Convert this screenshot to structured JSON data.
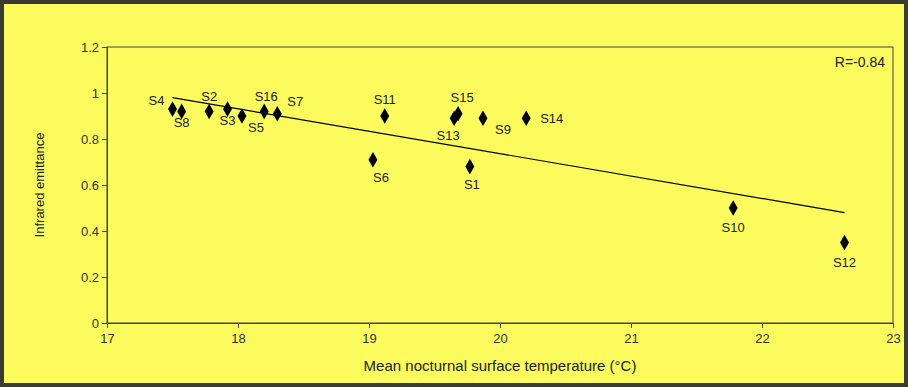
{
  "chart_data": {
    "type": "scatter",
    "x_label": "Mean nocturnal surface temperature (°C)",
    "y_label": "Infrared emittance",
    "annotation": "R=-0.84",
    "point_labels": [
      "S4",
      "S8",
      "S2",
      "S3",
      "S16",
      "S5",
      "S7",
      "S11",
      "S6",
      "S15",
      "S13",
      "S9",
      "S1",
      "S14",
      "S10",
      "S12"
    ],
    "x": [
      17.5,
      17.57,
      17.78,
      17.92,
      18.2,
      18.03,
      18.3,
      19.12,
      19.03,
      19.68,
      19.65,
      19.87,
      19.77,
      20.2,
      21.78,
      22.63
    ],
    "values": [
      0.93,
      0.92,
      0.92,
      0.93,
      0.92,
      0.9,
      0.91,
      0.9,
      0.71,
      0.91,
      0.89,
      0.89,
      0.68,
      0.89,
      0.5,
      0.35
    ],
    "trend_line": {
      "x": [
        17.5,
        22.63
      ],
      "values": [
        0.98,
        0.48
      ]
    },
    "color": "#000000",
    "marker": "diamond",
    "xlim": [
      17,
      23
    ],
    "xticks": [
      17,
      18,
      19,
      20,
      21,
      22,
      23
    ],
    "ylim": [
      0,
      1.2
    ],
    "yticks": [
      0,
      0.2,
      0.4,
      0.6,
      0.8,
      1,
      1.2
    ],
    "grid": false
  }
}
